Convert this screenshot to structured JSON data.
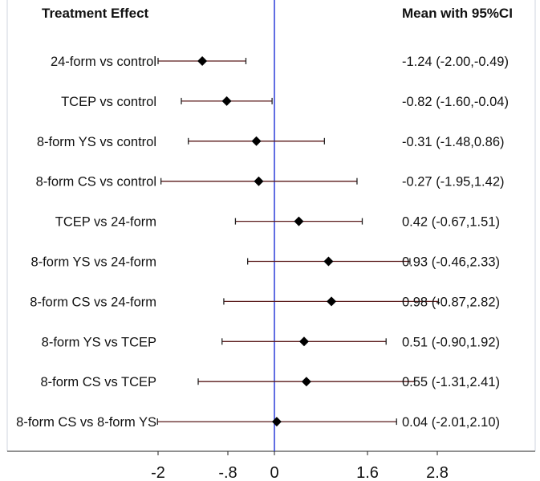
{
  "chart_data": {
    "type": "forest",
    "title": "",
    "headers": {
      "left": "Treatment Effect",
      "right": "Mean with 95%CI"
    },
    "xlim": [
      -2.4,
      3.5
    ],
    "reference_line": 0,
    "reference_line_color": "#1c2fd6",
    "whisker_color": "#5a1a1a",
    "marker_color": "#000000",
    "x_ticks": [
      {
        "value": -2,
        "label": "-2"
      },
      {
        "value": -0.8,
        "label": "-.8"
      },
      {
        "value": 0,
        "label": "0"
      },
      {
        "value": 1.6,
        "label": "1.6"
      },
      {
        "value": 2.8,
        "label": "2.8"
      }
    ],
    "rows": [
      {
        "label": "24-form vs control",
        "mean": -1.24,
        "lower": -2.0,
        "upper": -0.49,
        "ci_text": "-1.24 (-2.00,-0.49)"
      },
      {
        "label": "TCEP vs control",
        "mean": -0.82,
        "lower": -1.6,
        "upper": -0.04,
        "ci_text": "-0.82 (-1.60,-0.04)"
      },
      {
        "label": "8-form YS vs control",
        "mean": -0.31,
        "lower": -1.48,
        "upper": 0.86,
        "ci_text": "-0.31 (-1.48,0.86)"
      },
      {
        "label": "8-form CS vs control",
        "mean": -0.27,
        "lower": -1.95,
        "upper": 1.42,
        "ci_text": "-0.27 (-1.95,1.42)"
      },
      {
        "label": "TCEP vs 24-form",
        "mean": 0.42,
        "lower": -0.67,
        "upper": 1.51,
        "ci_text": "0.42 (-0.67,1.51)"
      },
      {
        "label": "8-form YS vs 24-form",
        "mean": 0.93,
        "lower": -0.46,
        "upper": 2.33,
        "ci_text": "0.93 (-0.46,2.33)"
      },
      {
        "label": "8-form CS vs 24-form",
        "mean": 0.98,
        "lower": -0.87,
        "upper": 2.82,
        "ci_text": "0.98 (-0.87,2.82)"
      },
      {
        "label": "8-form YS vs TCEP",
        "mean": 0.51,
        "lower": -0.9,
        "upper": 1.92,
        "ci_text": "0.51 (-0.90,1.92)"
      },
      {
        "label": "8-form CS vs TCEP",
        "mean": 0.55,
        "lower": -1.31,
        "upper": 2.41,
        "ci_text": "0.55 (-1.31,2.41)"
      },
      {
        "label": "8-form CS vs 8-form YS",
        "mean": 0.04,
        "lower": -2.01,
        "upper": 2.1,
        "ci_text": "0.04 (-2.01,2.10)"
      }
    ]
  }
}
